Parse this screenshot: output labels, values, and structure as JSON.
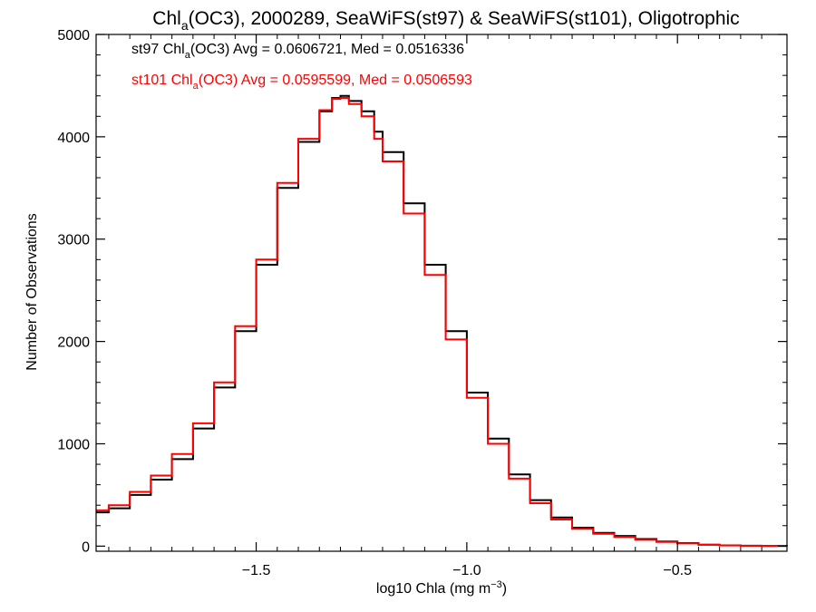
{
  "chart_data": {
    "type": "line",
    "title_parts": {
      "chl": "Chl",
      "sub": "a",
      "rest": "(OC3), 2000289, SeaWiFS(st97) & SeaWiFS(st101), Oligotrophic"
    },
    "xlabel_parts": {
      "main": "log10 Chla (mg m",
      "sup": "−3",
      "end": ")"
    },
    "ylabel": "Number of Observations",
    "xlim": [
      -1.88,
      -0.24
    ],
    "ylim": [
      -50,
      5000
    ],
    "x_ticks": [
      {
        "value": -1.5,
        "label": "−1.5"
      },
      {
        "value": -1.0,
        "label": "−1.0"
      },
      {
        "value": -0.5,
        "label": "−0.5"
      }
    ],
    "y_ticks": [
      {
        "value": 0,
        "label": "0"
      },
      {
        "value": 1000,
        "label": "1000"
      },
      {
        "value": 2000,
        "label": "2000"
      },
      {
        "value": 3000,
        "label": "3000"
      },
      {
        "value": 4000,
        "label": "4000"
      },
      {
        "value": 5000,
        "label": "5000"
      }
    ],
    "grid": false,
    "colors": {
      "st97": "#000000",
      "st101": "#ff0000"
    },
    "annotations": [
      {
        "color": "#000000",
        "pre": "st97 Chl",
        "sub": "a",
        "post": "(OC3) Avg = 0.0606721, Med = 0.0516336"
      },
      {
        "color": "#ff0000",
        "pre": "st101 Chl",
        "sub": "a",
        "post": "(OC3) Avg = 0.0595599, Med = 0.0506593"
      }
    ],
    "series": [
      {
        "color": "#000000",
        "x": [
          -1.88,
          -1.85,
          -1.8,
          -1.75,
          -1.7,
          -1.65,
          -1.6,
          -1.55,
          -1.5,
          -1.45,
          -1.4,
          -1.35,
          -1.32,
          -1.3,
          -1.28,
          -1.25,
          -1.22,
          -1.2,
          -1.15,
          -1.1,
          -1.05,
          -1.0,
          -0.95,
          -0.9,
          -0.85,
          -0.8,
          -0.75,
          -0.7,
          -0.65,
          -0.6,
          -0.55,
          -0.5,
          -0.45,
          -0.4,
          -0.35,
          -0.3,
          -0.24
        ],
        "y": [
          330,
          370,
          500,
          650,
          850,
          1150,
          1550,
          2100,
          2750,
          3500,
          3950,
          4250,
          4380,
          4400,
          4350,
          4250,
          4050,
          3850,
          3350,
          2750,
          2100,
          1500,
          1050,
          700,
          450,
          280,
          180,
          130,
          100,
          70,
          45,
          30,
          15,
          8,
          4,
          2,
          1
        ]
      },
      {
        "color": "#ff0000",
        "x": [
          -1.88,
          -1.85,
          -1.8,
          -1.75,
          -1.7,
          -1.65,
          -1.6,
          -1.55,
          -1.5,
          -1.45,
          -1.4,
          -1.35,
          -1.32,
          -1.3,
          -1.28,
          -1.25,
          -1.22,
          -1.2,
          -1.15,
          -1.1,
          -1.05,
          -1.0,
          -0.95,
          -0.9,
          -0.85,
          -0.8,
          -0.75,
          -0.7,
          -0.65,
          -0.6,
          -0.55,
          -0.5,
          -0.45,
          -0.4,
          -0.35,
          -0.3,
          -0.24
        ],
        "y": [
          350,
          400,
          530,
          690,
          900,
          1200,
          1600,
          2150,
          2800,
          3550,
          3980,
          4260,
          4370,
          4380,
          4320,
          4200,
          3980,
          3760,
          3250,
          2650,
          2020,
          1450,
          1000,
          660,
          420,
          260,
          170,
          120,
          90,
          62,
          40,
          26,
          13,
          7,
          3,
          2,
          1
        ]
      }
    ]
  }
}
